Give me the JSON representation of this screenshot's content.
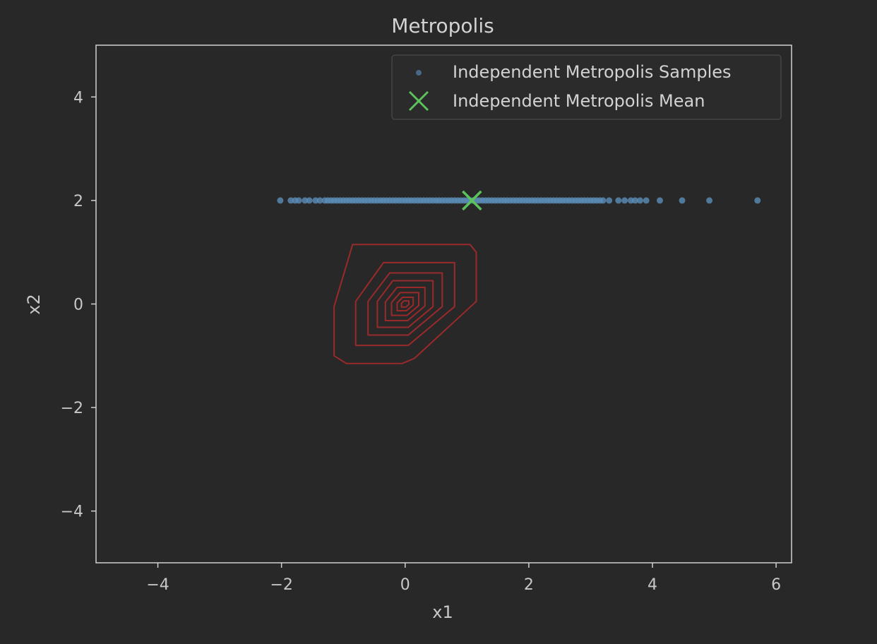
{
  "chart_data": {
    "type": "scatter",
    "title": "Metropolis",
    "xlabel": "x1",
    "ylabel": "x2",
    "xlim": [
      -5,
      6.25
    ],
    "ylim": [
      -5,
      5
    ],
    "xticks": [
      -4,
      -2,
      0,
      2,
      4,
      6
    ],
    "xtick_labels": [
      "−4",
      "−2",
      "0",
      "2",
      "4",
      "6"
    ],
    "yticks": [
      -4,
      -2,
      0,
      2,
      4
    ],
    "ytick_labels": [
      "−4",
      "−2",
      "0",
      "2",
      "4"
    ],
    "grid": false,
    "legend_position": "top-right",
    "series": [
      {
        "name": "Independent Metropolis Samples",
        "kind": "scatter",
        "color": "#5b8db8",
        "x": [
          -2.02,
          -1.85,
          -1.78,
          -1.72,
          -1.62,
          -1.55,
          -1.45,
          -1.38,
          -1.3,
          -1.25,
          -1.2,
          -1.15,
          -1.1,
          -1.05,
          -1.0,
          -0.95,
          -0.9,
          -0.85,
          -0.8,
          -0.75,
          -0.7,
          -0.65,
          -0.6,
          -0.55,
          -0.5,
          -0.45,
          -0.4,
          -0.35,
          -0.3,
          -0.25,
          -0.2,
          -0.15,
          -0.1,
          -0.05,
          0.0,
          0.05,
          0.1,
          0.15,
          0.2,
          0.25,
          0.3,
          0.35,
          0.4,
          0.45,
          0.5,
          0.55,
          0.6,
          0.65,
          0.7,
          0.75,
          0.8,
          0.85,
          0.9,
          0.95,
          1.0,
          1.05,
          1.1,
          1.15,
          1.2,
          1.25,
          1.3,
          1.35,
          1.4,
          1.45,
          1.5,
          1.55,
          1.6,
          1.65,
          1.7,
          1.75,
          1.8,
          1.85,
          1.9,
          1.95,
          2.0,
          2.05,
          2.1,
          2.15,
          2.2,
          2.25,
          2.3,
          2.35,
          2.4,
          2.45,
          2.5,
          2.55,
          2.6,
          2.65,
          2.7,
          2.75,
          2.8,
          2.85,
          2.9,
          2.95,
          3.0,
          3.05,
          3.1,
          3.15,
          3.2,
          3.3,
          3.45,
          3.55,
          3.65,
          3.72,
          3.8,
          3.9,
          4.12,
          4.48,
          4.92,
          5.7
        ],
        "y": [
          2,
          2,
          2,
          2,
          2,
          2,
          2,
          2,
          2,
          2,
          2,
          2,
          2,
          2,
          2,
          2,
          2,
          2,
          2,
          2,
          2,
          2,
          2,
          2,
          2,
          2,
          2,
          2,
          2,
          2,
          2,
          2,
          2,
          2,
          2,
          2,
          2,
          2,
          2,
          2,
          2,
          2,
          2,
          2,
          2,
          2,
          2,
          2,
          2,
          2,
          2,
          2,
          2,
          2,
          2,
          2,
          2,
          2,
          2,
          2,
          2,
          2,
          2,
          2,
          2,
          2,
          2,
          2,
          2,
          2,
          2,
          2,
          2,
          2,
          2,
          2,
          2,
          2,
          2,
          2,
          2,
          2,
          2,
          2,
          2,
          2,
          2,
          2,
          2,
          2,
          2,
          2,
          2,
          2,
          2,
          2,
          2,
          2,
          2,
          2,
          2,
          2,
          2,
          2,
          2,
          2,
          2,
          2,
          2,
          2
        ]
      },
      {
        "name": "Independent Metropolis Mean",
        "kind": "marker",
        "marker": "x",
        "color": "#5cc35c",
        "x": [
          1.08
        ],
        "y": [
          2.0
        ]
      }
    ],
    "contours": {
      "color": "#9a2a2a",
      "levels": [
        [
          [
            -0.85,
            1.15
          ],
          [
            0.05,
            1.15
          ],
          [
            1.05,
            1.15
          ],
          [
            1.15,
            1.0
          ],
          [
            1.15,
            0.05
          ],
          [
            0.15,
            -1.05
          ],
          [
            -0.05,
            -1.15
          ],
          [
            -0.95,
            -1.15
          ],
          [
            -1.15,
            -1.0
          ],
          [
            -1.15,
            -0.05
          ]
        ],
        [
          [
            -0.35,
            0.8
          ],
          [
            0.8,
            0.8
          ],
          [
            0.8,
            -0.05
          ],
          [
            0.05,
            -0.8
          ],
          [
            -0.8,
            -0.8
          ],
          [
            -0.8,
            0.05
          ]
        ],
        [
          [
            -0.25,
            0.6
          ],
          [
            0.6,
            0.6
          ],
          [
            0.6,
            -0.05
          ],
          [
            0.05,
            -0.6
          ],
          [
            -0.6,
            -0.6
          ],
          [
            -0.6,
            0.05
          ]
        ],
        [
          [
            -0.2,
            0.45
          ],
          [
            0.45,
            0.45
          ],
          [
            0.45,
            -0.05
          ],
          [
            0.05,
            -0.45
          ],
          [
            -0.45,
            -0.45
          ],
          [
            -0.45,
            0.05
          ]
        ],
        [
          [
            -0.13,
            0.32
          ],
          [
            0.32,
            0.32
          ],
          [
            0.32,
            -0.04
          ],
          [
            0.04,
            -0.32
          ],
          [
            -0.32,
            -0.32
          ],
          [
            -0.32,
            0.04
          ]
        ],
        [
          [
            -0.08,
            0.22
          ],
          [
            0.22,
            0.22
          ],
          [
            0.22,
            -0.03
          ],
          [
            0.03,
            -0.22
          ],
          [
            -0.22,
            -0.22
          ],
          [
            -0.22,
            0.03
          ]
        ],
        [
          [
            -0.04,
            0.13
          ],
          [
            0.13,
            0.13
          ],
          [
            0.13,
            -0.02
          ],
          [
            0.02,
            -0.13
          ],
          [
            -0.13,
            -0.13
          ],
          [
            -0.13,
            0.02
          ]
        ],
        [
          [
            -0.02,
            0.06
          ],
          [
            0.06,
            0.06
          ],
          [
            0.06,
            -0.01
          ],
          [
            0.01,
            -0.06
          ],
          [
            -0.06,
            -0.06
          ],
          [
            -0.06,
            0.01
          ]
        ]
      ]
    }
  }
}
